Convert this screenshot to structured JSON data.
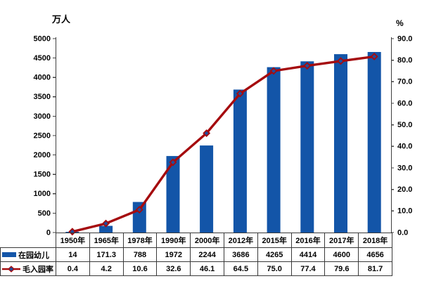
{
  "chart_data": {
    "type": "bar+line",
    "title": "",
    "categories": [
      "1950年",
      "1965年",
      "1978年",
      "1990年",
      "2000年",
      "2012年",
      "2015年",
      "2016年",
      "2017年",
      "2018年"
    ],
    "series": [
      {
        "name": "在园幼儿",
        "type": "bar",
        "axis": "left",
        "color": "#1355A8",
        "values": [
          14,
          171.3,
          788,
          1972,
          2244,
          3686,
          4265,
          4414,
          4600,
          4656
        ]
      },
      {
        "name": "毛入园率",
        "type": "line",
        "axis": "right",
        "color": "#A50B0E",
        "marker": "diamond",
        "marker_fill": "#1F4E9E",
        "decimals": 1,
        "values": [
          0.4,
          4.2,
          10.6,
          32.6,
          46.1,
          64.5,
          75.0,
          77.4,
          79.6,
          81.7
        ]
      }
    ],
    "left_axis": {
      "unit": "万人",
      "min": 0,
      "max": 5000,
      "step": 500,
      "decimals": 0
    },
    "right_axis": {
      "unit": "%",
      "min": 0,
      "max": 90,
      "step": 10,
      "decimals": 1
    },
    "grid": false,
    "legend_position": "table-left",
    "data_table": true,
    "axis_color": "#404040"
  }
}
